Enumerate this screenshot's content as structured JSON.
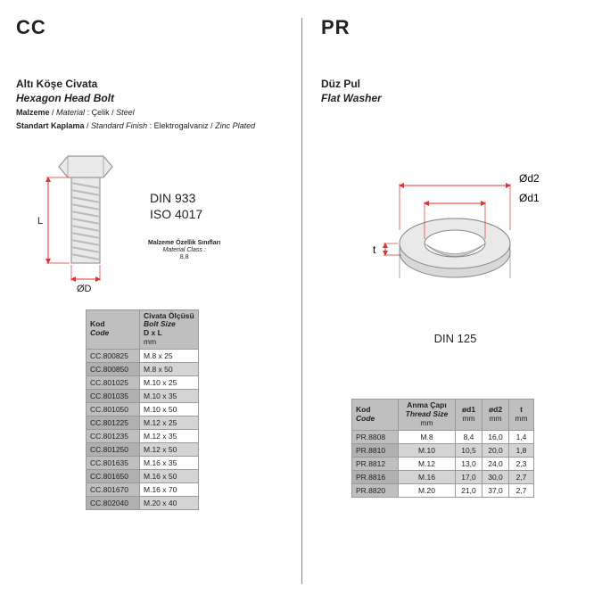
{
  "colors": {
    "dim": "#d33",
    "steel_light": "#e9e9e9",
    "steel_dark": "#c5c5c5",
    "outline": "#888"
  },
  "left": {
    "code": "CC",
    "title_tr": "Altı Köşe Civata",
    "title_en": "Hexagon Head Bolt",
    "material_label_tr": "Malzeme",
    "material_label_en": "Material",
    "material_tr": "Çelik",
    "material_en": "Steel",
    "finish_label_tr": "Standart Kaplama",
    "finish_label_en": "Standard Finish",
    "finish_tr": "Elektrogalvaniz",
    "finish_en": "Zinc Plated",
    "std1": "DIN 933",
    "std2": "ISO 4017",
    "matclass_tr": "Malzeme Özellik Sınıfları",
    "matclass_en": "Material Class :",
    "matclass_val": "8.8",
    "dim_L": "L",
    "dim_D": "ØD",
    "tbl": {
      "kod_tr": "Kod",
      "kod_en": "Code",
      "size_tr": "Civata Ölçüsü",
      "size_en": "Bolt Size",
      "size_sub": "D x L",
      "size_unit": "mm",
      "rows": [
        [
          "CC.800825",
          "M.8 x 25"
        ],
        [
          "CC.800850",
          "M.8 x 50"
        ],
        [
          "CC.801025",
          "M.10 x 25"
        ],
        [
          "CC.801035",
          "M.10 x 35"
        ],
        [
          "CC.801050",
          "M.10 x 50"
        ],
        [
          "CC.801225",
          "M.12 x 25"
        ],
        [
          "CC.801235",
          "M.12 x 35"
        ],
        [
          "CC.801250",
          "M.12 x 50"
        ],
        [
          "CC.801635",
          "M.16 x 35"
        ],
        [
          "CC.801650",
          "M.16 x 50"
        ],
        [
          "CC.801670",
          "M.16 x 70"
        ],
        [
          "CC.802040",
          "M.20 x 40"
        ]
      ]
    }
  },
  "right": {
    "code": "PR",
    "title_tr": "Düz Pul",
    "title_en": "Flat Washer",
    "din": "DIN 125",
    "dim_d2": "Ød2",
    "dim_d1": "Ød1",
    "dim_t": "t",
    "tbl": {
      "kod_tr": "Kod",
      "kod_en": "Code",
      "thread_tr": "Anma Çapı",
      "thread_en": "Thread Size",
      "unit": "mm",
      "c3": "ød1",
      "c4": "ød2",
      "c5": "t",
      "rows": [
        [
          "PR.8808",
          "M.8",
          "8,4",
          "16,0",
          "1,4"
        ],
        [
          "PR.8810",
          "M.10",
          "10,5",
          "20,0",
          "1,8"
        ],
        [
          "PR.8812",
          "M.12",
          "13,0",
          "24,0",
          "2,3"
        ],
        [
          "PR.8816",
          "M.16",
          "17,0",
          "30,0",
          "2,7"
        ],
        [
          "PR.8820",
          "M.20",
          "21,0",
          "37,0",
          "2,7"
        ]
      ]
    }
  }
}
